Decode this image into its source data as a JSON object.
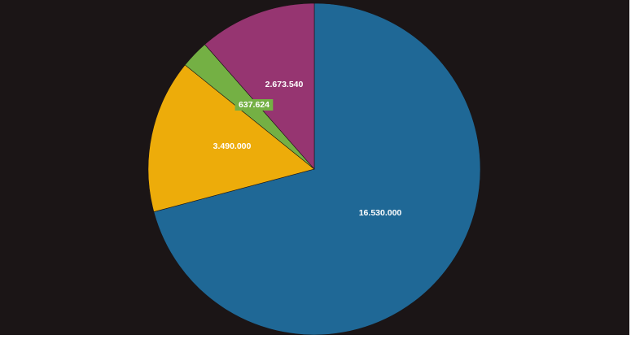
{
  "chart_data": {
    "type": "pie",
    "start_angle": "12 o'clock",
    "direction": "clockwise",
    "legend": "none",
    "slices": [
      {
        "label": "16.530.000",
        "value": 16530000,
        "color": "#1f6896"
      },
      {
        "label": "3.490.000",
        "value": 3490000,
        "color": "#edac0a"
      },
      {
        "label": "637.624",
        "value": 637624,
        "color": "#74b044",
        "label_box": "#74b044"
      },
      {
        "label": "2.673.540",
        "value": 2673540,
        "color": "#963571"
      }
    ]
  }
}
